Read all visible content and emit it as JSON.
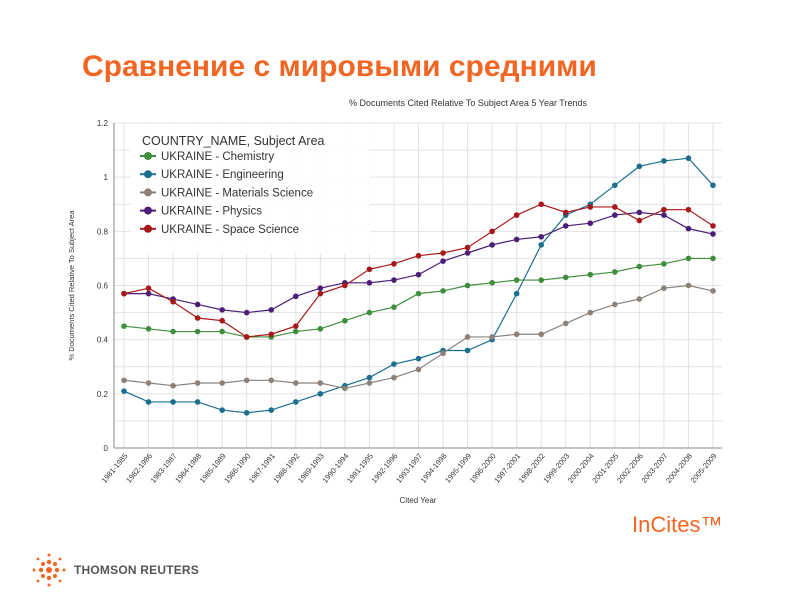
{
  "slide_title": "Сравнение с мировыми средними",
  "brand": "THOMSON REUTERS",
  "product": "InCites™",
  "chart_data": {
    "type": "line",
    "title": "% Documents Cited Relative To Subject Area 5 Year Trends",
    "xlabel": "Cited Year",
    "ylabel": "% Documents Cited Relative To Subject Area",
    "ylim": [
      0,
      1.2
    ],
    "yticks": [
      "0",
      "0.2",
      "0.4",
      "0.6",
      "0.8",
      "1",
      "1.2"
    ],
    "grid": true,
    "legend_title": "COUNTRY_NAME, Subject Area",
    "legend_position": "top-left",
    "categories": [
      "1981-1985",
      "1982-1986",
      "1983-1987",
      "1984-1988",
      "1985-1989",
      "1986-1990",
      "1987-1991",
      "1988-1992",
      "1989-1993",
      "1990-1994",
      "1991-1995",
      "1992-1996",
      "1993-1997",
      "1994-1998",
      "1995-1999",
      "1996-2000",
      "1997-2001",
      "1998-2002",
      "1999-2003",
      "2000-2004",
      "2001-2005",
      "2002-2006",
      "2003-2007",
      "2004-2008",
      "2005-2009"
    ],
    "series": [
      {
        "name": "UKRAINE - Chemistry",
        "color": "#3e8e3e",
        "values": [
          0.45,
          0.44,
          0.43,
          0.43,
          0.43,
          0.41,
          0.41,
          0.43,
          0.44,
          0.47,
          0.5,
          0.52,
          0.57,
          0.58,
          0.6,
          0.61,
          0.62,
          0.62,
          0.63,
          0.64,
          0.65,
          0.67,
          0.68,
          0.7,
          0.7
        ]
      },
      {
        "name": "UKRAINE - Engineering",
        "color": "#1a6e8e",
        "values": [
          0.21,
          0.17,
          0.17,
          0.17,
          0.14,
          0.13,
          0.14,
          0.17,
          0.2,
          0.23,
          0.26,
          0.31,
          0.33,
          0.36,
          0.36,
          0.4,
          0.57,
          0.75,
          0.86,
          0.9,
          0.97,
          1.04,
          1.06,
          1.07,
          0.97
        ]
      },
      {
        "name": "UKRAINE - Materials Science",
        "color": "#8a827a",
        "values": [
          0.25,
          0.24,
          0.23,
          0.24,
          0.24,
          0.25,
          0.25,
          0.24,
          0.24,
          0.22,
          0.24,
          0.26,
          0.29,
          0.35,
          0.41,
          0.41,
          0.42,
          0.42,
          0.46,
          0.5,
          0.53,
          0.55,
          0.59,
          0.6,
          0.58
        ]
      },
      {
        "name": "UKRAINE - Physics",
        "color": "#4b1f78",
        "values": [
          0.57,
          0.57,
          0.55,
          0.53,
          0.51,
          0.5,
          0.51,
          0.56,
          0.59,
          0.61,
          0.61,
          0.62,
          0.64,
          0.69,
          0.72,
          0.75,
          0.77,
          0.78,
          0.82,
          0.83,
          0.86,
          0.87,
          0.86,
          0.81,
          0.79
        ]
      },
      {
        "name": "UKRAINE - Space Science",
        "color": "#a81818",
        "values": [
          0.57,
          0.59,
          0.54,
          0.48,
          0.47,
          0.41,
          0.42,
          0.45,
          0.57,
          0.6,
          0.66,
          0.68,
          0.71,
          0.72,
          0.74,
          0.8,
          0.86,
          0.9,
          0.87,
          0.89,
          0.89,
          0.84,
          0.88,
          0.88,
          0.82
        ]
      }
    ]
  }
}
